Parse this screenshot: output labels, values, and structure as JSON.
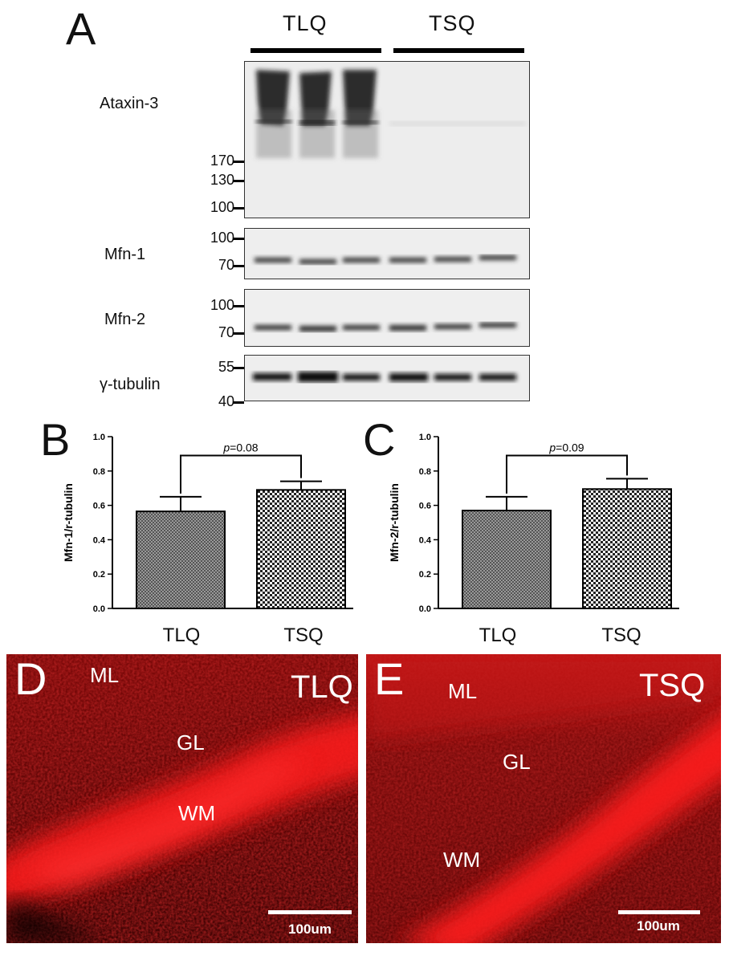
{
  "panels": {
    "a": "A",
    "b": "B",
    "c": "C",
    "d": "D",
    "e": "E"
  },
  "western": {
    "groups": [
      "TLQ",
      "TSQ"
    ],
    "blots": [
      {
        "protein": "Ataxin-3",
        "markers": [
          "170",
          "130",
          "100"
        ]
      },
      {
        "protein": "Mfn-1",
        "markers": [
          "100",
          "70"
        ]
      },
      {
        "protein": "Mfn-2",
        "markers": [
          "100",
          "70"
        ]
      },
      {
        "protein": "γ-tubulin",
        "markers": [
          "55",
          "40"
        ]
      }
    ]
  },
  "chart_data": [
    {
      "type": "bar",
      "panel": "B",
      "categories": [
        "TLQ",
        "TSQ"
      ],
      "values": [
        0.565,
        0.69
      ],
      "errors": [
        0.085,
        0.05
      ],
      "ylabel": "Mfn-1/r-tubulin",
      "ylim": [
        0,
        1.0
      ],
      "yticks": [
        "0.0",
        "0.2",
        "0.4",
        "0.6",
        "0.8",
        "1.0"
      ],
      "annotation": {
        "p_label": "p",
        "p_value": "=0.08"
      }
    },
    {
      "type": "bar",
      "panel": "C",
      "categories": [
        "TLQ",
        "TSQ"
      ],
      "values": [
        0.57,
        0.695
      ],
      "errors": [
        0.08,
        0.06
      ],
      "ylabel": "Mfn-2/r-tubulin",
      "ylim": [
        0,
        1.0
      ],
      "yticks": [
        "0.0",
        "0.2",
        "0.4",
        "0.6",
        "0.8",
        "1.0"
      ],
      "annotation": {
        "p_label": "p",
        "p_value": "=0.09"
      }
    }
  ],
  "micrographs": {
    "d": {
      "group": "TLQ",
      "regions": [
        "ML",
        "GL",
        "WM"
      ],
      "scale": "100um"
    },
    "e": {
      "group": "TSQ",
      "regions": [
        "ML",
        "GL",
        "WM"
      ],
      "scale": "100um"
    }
  },
  "colors": {
    "fluorescence": "#e01010",
    "background": "#3a0505"
  }
}
